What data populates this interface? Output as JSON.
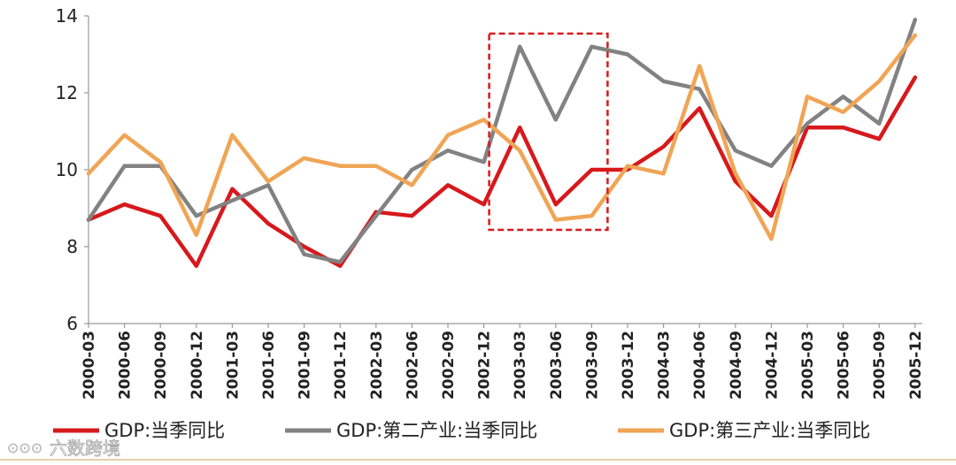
{
  "chart_data": {
    "type": "line",
    "title": "",
    "xlabel": "",
    "ylabel": "",
    "ylim": [
      6,
      14
    ],
    "yticks": [
      "6",
      "8",
      "10",
      "12",
      "14"
    ],
    "categories": [
      "2000-03",
      "2000-06",
      "2000-09",
      "2000-12",
      "2001-03",
      "2001-06",
      "2001-09",
      "2001-12",
      "2002-03",
      "2002-06",
      "2002-09",
      "2002-12",
      "2003-03",
      "2003-06",
      "2003-09",
      "2003-12",
      "2004-03",
      "2004-06",
      "2004-09",
      "2004-12",
      "2005-03",
      "2005-06",
      "2005-09",
      "2005-12"
    ],
    "category_labels": [
      "2000-03",
      "2000-06",
      "2000-09",
      "2000-12",
      "2001-03",
      "2001-06",
      "2001-09",
      "2001-12",
      "2002-03",
      "2002-06",
      "2002-09",
      "2002-12",
      "2003-03",
      "2003-06",
      "2003-09",
      "2003-12",
      "2004-03",
      "2004-06",
      "2004-09",
      "2004-12",
      "2005-03",
      "2005-06",
      "2005-09",
      "2005-12"
    ],
    "series": [
      {
        "name": "GDP:当季同比",
        "color": "#d7191c",
        "values": [
          8.7,
          9.1,
          8.8,
          7.5,
          9.5,
          8.6,
          8.0,
          7.5,
          8.9,
          8.8,
          9.6,
          9.1,
          11.1,
          9.1,
          10.0,
          10.0,
          10.6,
          11.6,
          9.7,
          8.8,
          11.1,
          11.1,
          10.8,
          12.4
        ]
      },
      {
        "name": "GDP:第二产业:当季同比",
        "color": "#828282",
        "values": [
          8.7,
          10.1,
          10.1,
          8.8,
          9.2,
          9.6,
          7.8,
          7.6,
          8.8,
          10.0,
          10.5,
          10.2,
          13.2,
          11.3,
          13.2,
          13.0,
          12.3,
          12.1,
          10.5,
          10.1,
          11.2,
          11.9,
          11.2,
          13.9
        ]
      },
      {
        "name": "GDP:第三产业:当季同比",
        "color": "#f0a555",
        "values": [
          9.9,
          10.9,
          10.2,
          8.3,
          10.9,
          9.7,
          10.3,
          10.1,
          10.1,
          9.6,
          10.9,
          11.3,
          10.5,
          8.7,
          8.8,
          10.1,
          9.9,
          12.7,
          9.9,
          8.2,
          11.9,
          11.5,
          12.3,
          13.5
        ]
      }
    ],
    "highlight": {
      "from": "2002-12",
      "to": "2003-09",
      "color": "#d7191c",
      "style": "dashed"
    },
    "legend_position": "bottom",
    "grid": false
  },
  "watermark": "六数跨境"
}
